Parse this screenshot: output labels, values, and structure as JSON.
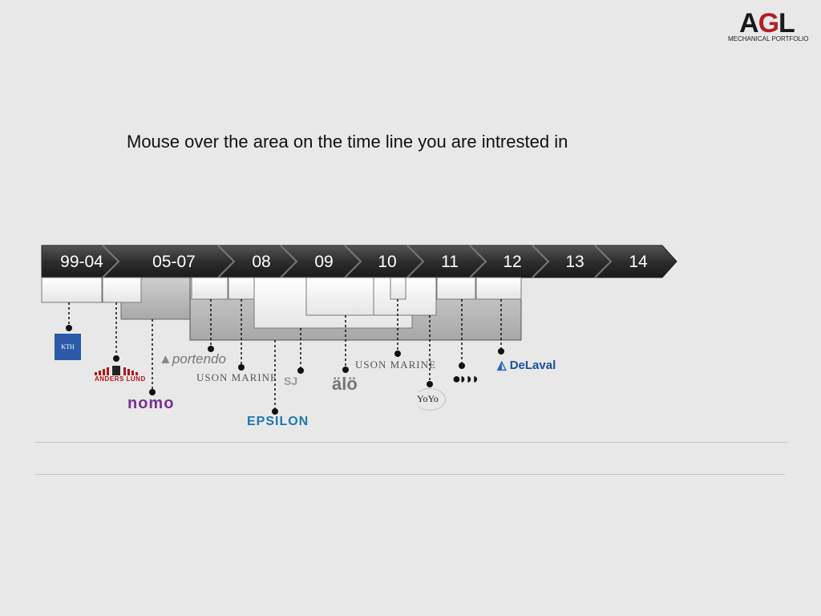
{
  "logo": {
    "letters": "AGL",
    "subtitle": "MECHANICAL PORTFOLIO"
  },
  "instruction": "Mouse over the area on the time line you are intrested in",
  "timeline": {
    "segments": [
      "99-04",
      "05-07",
      "08",
      "09",
      "10",
      "11",
      "12",
      "13",
      "14"
    ]
  },
  "companies": [
    {
      "id": "kth",
      "label": "KTH"
    },
    {
      "id": "anders-lund",
      "label": "ANDERS LUND"
    },
    {
      "id": "nomo",
      "label": "nomo"
    },
    {
      "id": "portendo",
      "label": "portendo"
    },
    {
      "id": "uson-marine-1",
      "label": "USON MARINE"
    },
    {
      "id": "epsilon",
      "label": "EPSILON"
    },
    {
      "id": "sj",
      "label": "SJ"
    },
    {
      "id": "alo",
      "label": "älö"
    },
    {
      "id": "uson-marine-2",
      "label": "USON MARINE"
    },
    {
      "id": "yoyo",
      "label": "YoYo"
    },
    {
      "id": "dots-brand",
      "label": ""
    },
    {
      "id": "delaval",
      "label": "DeLaval"
    }
  ],
  "colors": {
    "accent": "#b21f24",
    "timeline_dark": "#333333",
    "box_light": "#f2f2f2",
    "box_gray": "#b8b8b8"
  }
}
